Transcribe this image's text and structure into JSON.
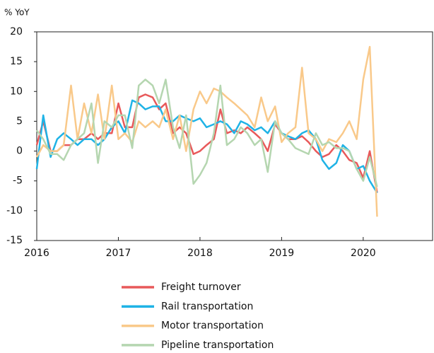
{
  "chart_data": {
    "type": "line",
    "y_label": "% YoY",
    "x": [
      2016,
      2016.08,
      2016.17,
      2016.25,
      2016.33,
      2016.42,
      2016.5,
      2016.58,
      2016.67,
      2016.75,
      2016.83,
      2016.92,
      2017,
      2017.08,
      2017.17,
      2017.25,
      2017.33,
      2017.42,
      2017.5,
      2017.58,
      2017.67,
      2017.75,
      2017.83,
      2017.92,
      2018,
      2018.08,
      2018.17,
      2018.25,
      2018.33,
      2018.42,
      2018.5,
      2018.58,
      2018.67,
      2018.75,
      2018.83,
      2018.92,
      2019,
      2019.08,
      2019.17,
      2019.25,
      2019.33,
      2019.42,
      2019.5,
      2019.58,
      2019.67,
      2019.75,
      2019.83,
      2019.92,
      2020,
      2020.08,
      2020.17
    ],
    "series": [
      {
        "name": "Freight turnover",
        "color": "#e8595a",
        "values": [
          1,
          5,
          0,
          0,
          1,
          1,
          2,
          2,
          3,
          2,
          3,
          3,
          8,
          4,
          4,
          9,
          9.5,
          9,
          7,
          8,
          3,
          4,
          3,
          -0.5,
          0,
          1,
          2,
          7,
          3,
          3.5,
          3,
          4,
          3,
          2,
          0,
          4.5,
          3,
          2,
          2,
          2.5,
          1.5,
          0,
          -1,
          -0.5,
          1,
          0,
          -1.5,
          -2,
          -4.5,
          0,
          -7
        ]
      },
      {
        "name": "Rail transportation",
        "color": "#1fb3e6",
        "values": [
          -3,
          6,
          -1,
          2,
          3,
          2,
          1,
          2,
          2,
          1,
          2,
          4,
          5,
          3,
          8.5,
          8,
          7,
          7.5,
          7.5,
          5,
          5,
          6,
          5.5,
          5,
          5.5,
          4,
          4.5,
          5,
          4.5,
          3,
          5,
          4.5,
          3.5,
          4,
          3,
          5,
          3,
          2.5,
          2,
          3,
          3.5,
          2,
          -1.5,
          -3,
          -2,
          1,
          0,
          -3,
          -2.5,
          -5,
          -7
        ]
      },
      {
        "name": "Motor transportation",
        "color": "#f9c98a",
        "values": [
          -1,
          1,
          0,
          0,
          1,
          11,
          2,
          8,
          3,
          9.5,
          2,
          11,
          2,
          3,
          1.5,
          5,
          4,
          5,
          4,
          7,
          2,
          6,
          0,
          7,
          10,
          8,
          10.5,
          10,
          9,
          8,
          7,
          6,
          4,
          9,
          5,
          7.5,
          1.5,
          3,
          4,
          14,
          3,
          2,
          0,
          2,
          1.5,
          3,
          5,
          2,
          12,
          17.5,
          -11
        ]
      },
      {
        "name": "Pipeline transportation",
        "color": "#b5d6b0",
        "values": [
          3.5,
          2,
          -0.5,
          -0.5,
          -1.5,
          1,
          2,
          3,
          8,
          -2,
          5,
          4,
          6,
          6,
          0.5,
          11,
          12,
          11,
          8,
          12,
          4,
          0.5,
          6,
          -5.5,
          -4,
          -2,
          3,
          11,
          1,
          2,
          4,
          3,
          1,
          2,
          -3.5,
          5,
          3,
          2,
          0.5,
          0,
          -0.5,
          3,
          1,
          1.5,
          0.5,
          0.5,
          0,
          -3,
          -5,
          -1,
          -6
        ]
      }
    ],
    "xlim": [
      2016,
      2020.85
    ],
    "xticks": [
      2016,
      2017,
      2018,
      2019,
      2020
    ],
    "ylim": [
      -15,
      20
    ],
    "yticks": [
      -15,
      -10,
      -5,
      0,
      5,
      10,
      15,
      20
    ],
    "grid": false,
    "legend": "bottom"
  }
}
